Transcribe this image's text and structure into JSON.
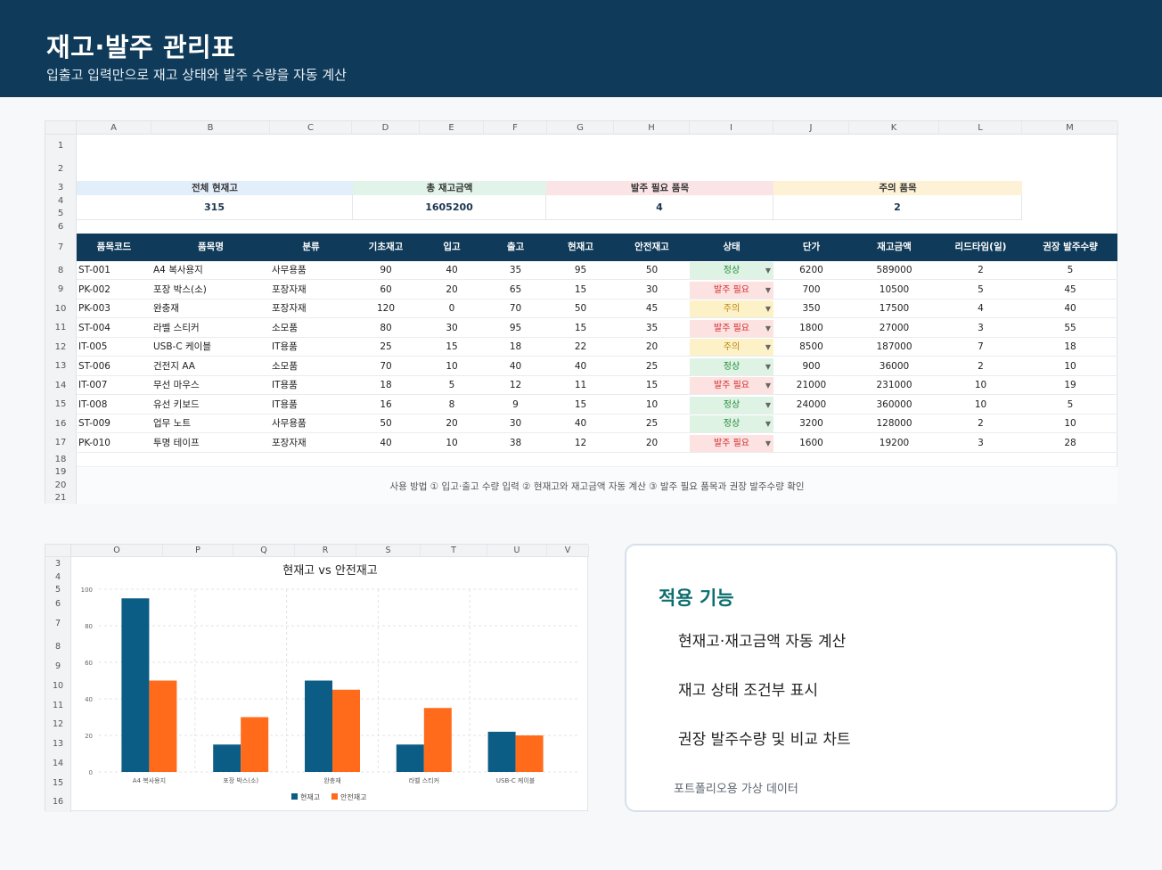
{
  "header": {
    "title": "재고·발주 관리표",
    "subtitle": "입출고 입력만으로 재고 상태와 발주 수량을 자동 계산"
  },
  "sheet": {
    "columns": [
      "A",
      "B",
      "C",
      "D",
      "E",
      "F",
      "G",
      "H",
      "I",
      "J",
      "K",
      "L",
      "M"
    ],
    "rows": [
      "1",
      "2",
      "3",
      "4",
      "5",
      "6",
      "7",
      "8",
      "9",
      "10",
      "11",
      "12",
      "13",
      "14",
      "15",
      "16",
      "17",
      "18",
      "19",
      "20",
      "21"
    ],
    "kpis": [
      {
        "label": "전체 현재고",
        "value": "315",
        "color": "#e3eefb"
      },
      {
        "label": "총 재고금액",
        "value": "1605200",
        "color": "#e2f4ea"
      },
      {
        "label": "발주 필요 품목",
        "value": "4",
        "color": "#fbe4e6"
      },
      {
        "label": "주의 품목",
        "value": "2",
        "color": "#fdf2d6"
      }
    ],
    "headers": [
      "품목코드",
      "품목명",
      "분류",
      "기초재고",
      "입고",
      "출고",
      "현재고",
      "안전재고",
      "상태",
      "단가",
      "재고금액",
      "리드타임(일)",
      "권장 발주수량"
    ],
    "items": [
      {
        "code": "ST-001",
        "name": "A4 복사용지",
        "cat": "사무용품",
        "base": "90",
        "in": "40",
        "out": "35",
        "cur": "95",
        "safe": "50",
        "status": "정상",
        "price": "6200",
        "amount": "589000",
        "lead": "2",
        "order": "5"
      },
      {
        "code": "PK-002",
        "name": "포장 박스(소)",
        "cat": "포장자재",
        "base": "60",
        "in": "20",
        "out": "65",
        "cur": "15",
        "safe": "30",
        "status": "발주 필요",
        "price": "700",
        "amount": "10500",
        "lead": "5",
        "order": "45"
      },
      {
        "code": "PK-003",
        "name": "완충재",
        "cat": "포장자재",
        "base": "120",
        "in": "0",
        "out": "70",
        "cur": "50",
        "safe": "45",
        "status": "주의",
        "price": "350",
        "amount": "17500",
        "lead": "4",
        "order": "40"
      },
      {
        "code": "ST-004",
        "name": "라벨 스티커",
        "cat": "소모품",
        "base": "80",
        "in": "30",
        "out": "95",
        "cur": "15",
        "safe": "35",
        "status": "발주 필요",
        "price": "1800",
        "amount": "27000",
        "lead": "3",
        "order": "55"
      },
      {
        "code": "IT-005",
        "name": "USB-C 케이블",
        "cat": "IT용품",
        "base": "25",
        "in": "15",
        "out": "18",
        "cur": "22",
        "safe": "20",
        "status": "주의",
        "price": "8500",
        "amount": "187000",
        "lead": "7",
        "order": "18"
      },
      {
        "code": "ST-006",
        "name": "건전지 AA",
        "cat": "소모품",
        "base": "70",
        "in": "10",
        "out": "40",
        "cur": "40",
        "safe": "25",
        "status": "정상",
        "price": "900",
        "amount": "36000",
        "lead": "2",
        "order": "10"
      },
      {
        "code": "IT-007",
        "name": "무선 마우스",
        "cat": "IT용품",
        "base": "18",
        "in": "5",
        "out": "12",
        "cur": "11",
        "safe": "15",
        "status": "발주 필요",
        "price": "21000",
        "amount": "231000",
        "lead": "10",
        "order": "19"
      },
      {
        "code": "IT-008",
        "name": "유선 키보드",
        "cat": "IT용품",
        "base": "16",
        "in": "8",
        "out": "9",
        "cur": "15",
        "safe": "10",
        "status": "정상",
        "price": "24000",
        "amount": "360000",
        "lead": "10",
        "order": "5"
      },
      {
        "code": "ST-009",
        "name": "업무 노트",
        "cat": "사무용품",
        "base": "50",
        "in": "20",
        "out": "30",
        "cur": "40",
        "safe": "25",
        "status": "정상",
        "price": "3200",
        "amount": "128000",
        "lead": "2",
        "order": "10"
      },
      {
        "code": "PK-010",
        "name": "투명 테이프",
        "cat": "포장자재",
        "base": "40",
        "in": "10",
        "out": "38",
        "cur": "12",
        "safe": "20",
        "status": "발주 필요",
        "price": "1600",
        "amount": "19200",
        "lead": "3",
        "order": "28"
      }
    ],
    "status_styles": {
      "정상": {
        "bg": "#dff3e4",
        "fg": "#1f8a3d"
      },
      "발주 필요": {
        "bg": "#fde2e2",
        "fg": "#d12c2c"
      },
      "주의": {
        "bg": "#fdf1c8",
        "fg": "#b8860b"
      }
    },
    "note": "사용 방법 ① 입고·출고 수량 입력 ② 현재고와 재고금액 자동 계산 ③ 발주 필요 품목과 권장 발주수량 확인"
  },
  "chart_panel": {
    "columns": [
      "O",
      "P",
      "Q",
      "R",
      "S",
      "T",
      "U",
      "V"
    ],
    "rows": [
      "3",
      "4",
      "5",
      "6",
      "7",
      "8",
      "9",
      "10",
      "11",
      "12",
      "13",
      "14",
      "15",
      "16"
    ]
  },
  "chart_data": {
    "type": "bar",
    "title": "현재고 vs 안전재고",
    "categories": [
      "A4 복사용지",
      "포장 박스(소)",
      "완충재",
      "라벨 스티커",
      "USB-C 케이블"
    ],
    "series": [
      {
        "name": "현재고",
        "values": [
          95,
          15,
          50,
          15,
          22
        ],
        "color": "#0b5d86"
      },
      {
        "name": "안전재고",
        "values": [
          50,
          30,
          45,
          35,
          20
        ],
        "color": "#ff6b1a"
      }
    ],
    "ylim": [
      0,
      100
    ],
    "yticks": [
      0,
      20,
      40,
      60,
      80,
      100
    ],
    "grid": true,
    "legend": "bottom"
  },
  "features": {
    "title": "적용 기능",
    "items": [
      "현재고·재고금액 자동 계산",
      "재고 상태 조건부 표시",
      "권장 발주수량 및 비교 차트"
    ],
    "footer": "포트폴리오용 가상 데이터"
  }
}
